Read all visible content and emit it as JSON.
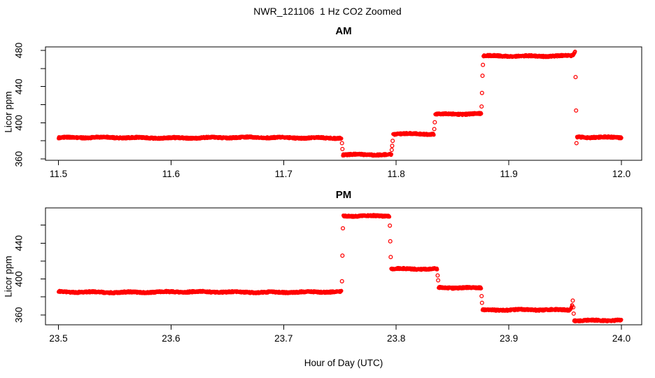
{
  "title": "NWR_121106  1 Hz CO2 Zoomed",
  "xlabel": "Hour of Day (UTC)",
  "colors": {
    "points": "#FF0000",
    "axis": "#000000",
    "background": "#FFFFFF"
  },
  "chart_data": [
    {
      "type": "scatter",
      "panel": "AM",
      "title": "AM",
      "ylabel": "Licor ppm",
      "marker": "open-circle",
      "color": "#FF0000",
      "sample_rate_hz": 1,
      "xlim": [
        11.4885,
        12.018
      ],
      "ylim": [
        358.5,
        483.9
      ],
      "xticks": [
        11.5,
        11.6,
        11.7,
        11.8,
        11.9,
        12.0
      ],
      "yticks": [
        360,
        380,
        400,
        420,
        440,
        460,
        480
      ],
      "yticks_labeled": [
        360,
        400,
        440,
        480
      ],
      "segments": [
        {
          "t_start": 11.5,
          "t_end": 11.7515,
          "ppm": 383.5
        },
        {
          "t_start": 11.7525,
          "t_end": 11.7957,
          "ppm": 364.5
        },
        {
          "t_start": 11.7971,
          "t_end": 11.8335,
          "ppm": 387.5
        },
        {
          "t_start": 11.8345,
          "t_end": 11.8755,
          "ppm": 409.5
        },
        {
          "t_start": 11.8773,
          "t_end": 11.959,
          "ppm": 474,
          "end_bump": 4.5
        },
        {
          "t_start": 11.9604,
          "t_end": 12.0,
          "ppm": 384
        }
      ],
      "transition_points": [
        [
          11.7518,
          377.5
        ],
        [
          11.7522,
          371
        ],
        [
          11.796,
          370
        ],
        [
          11.7964,
          374.5
        ],
        [
          11.7968,
          380
        ],
        [
          11.8338,
          393
        ],
        [
          11.8342,
          400.5
        ],
        [
          11.8758,
          418
        ],
        [
          11.8762,
          433
        ],
        [
          11.8766,
          452
        ],
        [
          11.877,
          464
        ],
        [
          11.9593,
          450.5
        ],
        [
          11.9597,
          413.5
        ],
        [
          11.9601,
          377.5
        ]
      ]
    },
    {
      "type": "scatter",
      "panel": "PM",
      "title": "PM",
      "ylabel": "Licor ppm",
      "marker": "open-circle",
      "color": "#FF0000",
      "sample_rate_hz": 1,
      "xlim": [
        23.4885,
        24.018
      ],
      "ylim": [
        349.0,
        479.2
      ],
      "xticks": [
        23.5,
        23.6,
        23.7,
        23.8,
        23.9,
        24.0
      ],
      "yticks": [
        360,
        380,
        400,
        420,
        440,
        460
      ],
      "yticks_labeled": [
        360,
        400,
        440
      ],
      "segments": [
        {
          "t_start": 23.5,
          "t_end": 23.7515,
          "ppm": 385.5
        },
        {
          "t_start": 23.7529,
          "t_end": 23.794,
          "ppm": 470.5
        },
        {
          "t_start": 23.7954,
          "t_end": 23.8365,
          "ppm": 411
        },
        {
          "t_start": 23.8375,
          "t_end": 23.8755,
          "ppm": 390
        },
        {
          "t_start": 23.8765,
          "t_end": 23.9565,
          "ppm": 365.5,
          "end_bump": 6
        },
        {
          "t_start": 23.9578,
          "t_end": 24.0,
          "ppm": 354
        }
      ],
      "transition_points": [
        [
          23.7518,
          397.5
        ],
        [
          23.7522,
          426
        ],
        [
          23.7526,
          456.5
        ],
        [
          23.7943,
          459.5
        ],
        [
          23.7947,
          442
        ],
        [
          23.7951,
          424.5
        ],
        [
          23.8368,
          404
        ],
        [
          23.8372,
          398.5
        ],
        [
          23.8758,
          381
        ],
        [
          23.8762,
          373.5
        ],
        [
          23.9568,
          376
        ],
        [
          23.9572,
          368.5
        ],
        [
          23.9576,
          361.5
        ]
      ]
    }
  ]
}
